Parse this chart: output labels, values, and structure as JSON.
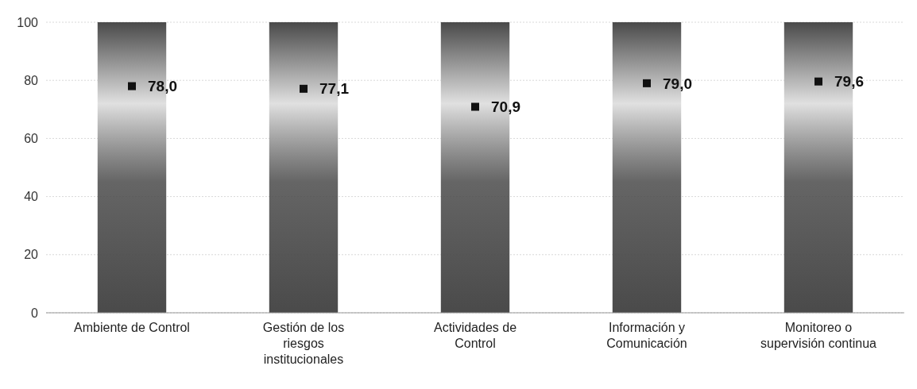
{
  "chart_data": {
    "type": "bar",
    "categories": [
      "Ambiente de Control",
      "Gestión de los riesgos institucionales",
      "Actividades de Control",
      "Información y Comunicación",
      "Monitoreo o supervisión continua"
    ],
    "series": [
      {
        "color": "#4a4a4a",
        "values": [
          100,
          100,
          100,
          100,
          100
        ]
      },
      {
        "type": "scatter",
        "color": "#111111",
        "marker": "square",
        "data_labels": true,
        "values": [
          78.0,
          77.1,
          70.9,
          79.0,
          79.6
        ],
        "value_labels": [
          "78,0",
          "77,1",
          "70,9",
          "79,0",
          "79,6"
        ]
      }
    ],
    "ylim": [
      0,
      100
    ],
    "yticks": [
      0,
      20,
      40,
      60,
      80,
      100
    ],
    "grid": "y"
  }
}
